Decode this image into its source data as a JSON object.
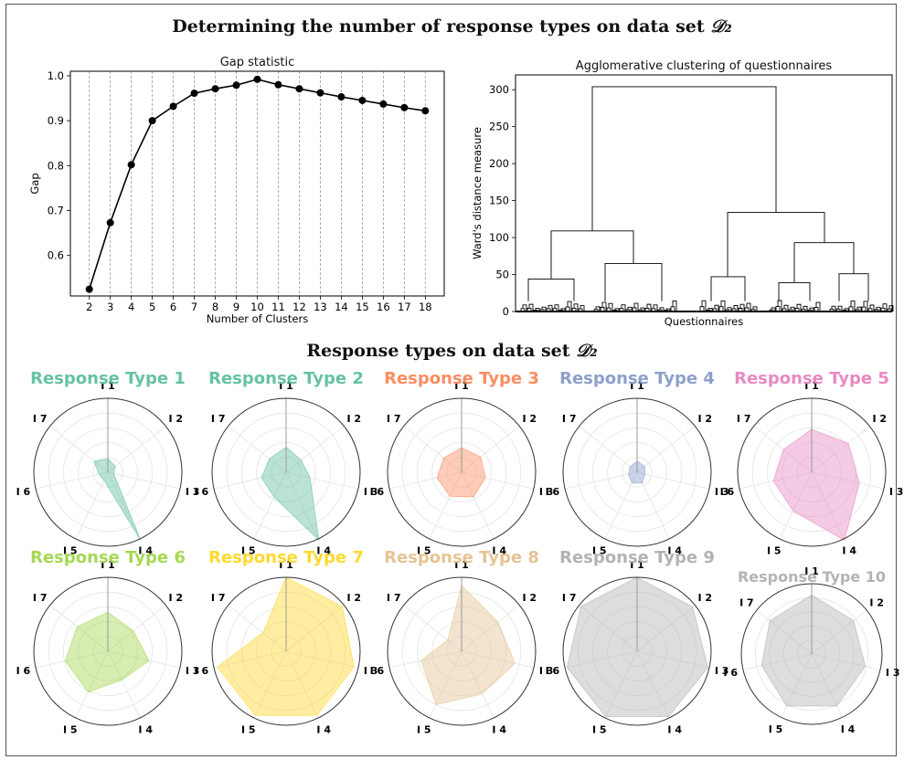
{
  "page": {
    "main_title": "Determining the number of response types on data set",
    "main_title_math": "𝒟₂",
    "sub_title": "Response types on data set",
    "sub_title_math": "𝒟₂"
  },
  "chart_data": [
    {
      "type": "line",
      "title": "Gap statistic",
      "xlabel": "Number of Clusters",
      "ylabel": "Gap",
      "x": [
        2,
        3,
        4,
        5,
        6,
        7,
        8,
        9,
        10,
        11,
        12,
        13,
        14,
        15,
        16,
        17,
        18
      ],
      "y": [
        0.525,
        0.673,
        0.802,
        0.9,
        0.932,
        0.961,
        0.971,
        0.979,
        0.992,
        0.98,
        0.971,
        0.962,
        0.953,
        0.945,
        0.937,
        0.929,
        0.922
      ],
      "ylim": [
        0.51,
        1.01
      ],
      "yticks": [
        "0.6",
        "0.7",
        "0.8",
        "0.9",
        "1.0"
      ],
      "xticks": [
        "2",
        "3",
        "4",
        "5",
        "6",
        "7",
        "8",
        "9",
        "10",
        "11",
        "12",
        "13",
        "14",
        "15",
        "16",
        "17",
        "18"
      ],
      "grid": "vertical dashed",
      "color": "#000000"
    },
    {
      "type": "dendrogram",
      "title": "Agglomerative clustering of questionnaires",
      "xlabel": "Questionnaires",
      "ylabel": "Ward's distance measure",
      "ylim": [
        0,
        320
      ],
      "yticks": [
        "0",
        "50",
        "100",
        "150",
        "200",
        "250",
        "300"
      ],
      "merges": [
        {
          "height": 304
        },
        {
          "height": 109
        },
        {
          "height": 134
        },
        {
          "height": 44
        },
        {
          "height": 65
        },
        {
          "height": 47
        },
        {
          "height": 93
        },
        {
          "height": 39
        },
        {
          "height": 51
        }
      ]
    },
    {
      "type": "radar",
      "axes": [
        "I 1",
        "I 2",
        "I 3",
        "I 4",
        "I 5",
        "I 6",
        "I 7"
      ],
      "rmax": 1.0,
      "types": [
        {
          "name": "Response Type 1",
          "color": "#66c2a5",
          "values": [
            0.18,
            0.13,
            0.08,
            1.02,
            0.12,
            0.12,
            0.24
          ]
        },
        {
          "name": "Response Type 2",
          "color": "#66c2a5",
          "values": [
            0.34,
            0.26,
            0.33,
            1.03,
            0.37,
            0.34,
            0.29
          ]
        },
        {
          "name": "Response Type 3",
          "color": "#fc8d62",
          "values": [
            0.33,
            0.33,
            0.33,
            0.37,
            0.36,
            0.34,
            0.31
          ]
        },
        {
          "name": "Response Type 4",
          "color": "#8da0cb",
          "values": [
            0.15,
            0.13,
            0.11,
            0.16,
            0.16,
            0.12,
            0.12
          ]
        },
        {
          "name": "Response Type 5",
          "color": "#e78ac3",
          "values": [
            0.58,
            0.63,
            0.66,
            1.02,
            0.58,
            0.53,
            0.49
          ]
        },
        {
          "name": "Response Type 6",
          "color": "#a6d854",
          "values": [
            0.53,
            0.44,
            0.57,
            0.43,
            0.61,
            0.59,
            0.53
          ]
        },
        {
          "name": "Response Type 7",
          "color": "#ffd92f",
          "values": [
            1.0,
            0.97,
            0.94,
            0.96,
            0.96,
            0.95,
            0.4
          ]
        },
        {
          "name": "Response Type 8",
          "color": "#e5c494",
          "values": [
            0.89,
            0.63,
            0.74,
            0.64,
            0.8,
            0.56,
            0.24
          ]
        },
        {
          "name": "Response Type 9",
          "color": "#b3b3b3",
          "values": [
            1.0,
            0.96,
            0.98,
            0.98,
            0.98,
            0.97,
            0.97
          ]
        },
        {
          "name": "Response Type 10",
          "color": "#b3b3b3",
          "values": [
            0.84,
            0.76,
            0.78,
            0.82,
            0.82,
            0.73,
            0.76
          ]
        }
      ]
    }
  ]
}
